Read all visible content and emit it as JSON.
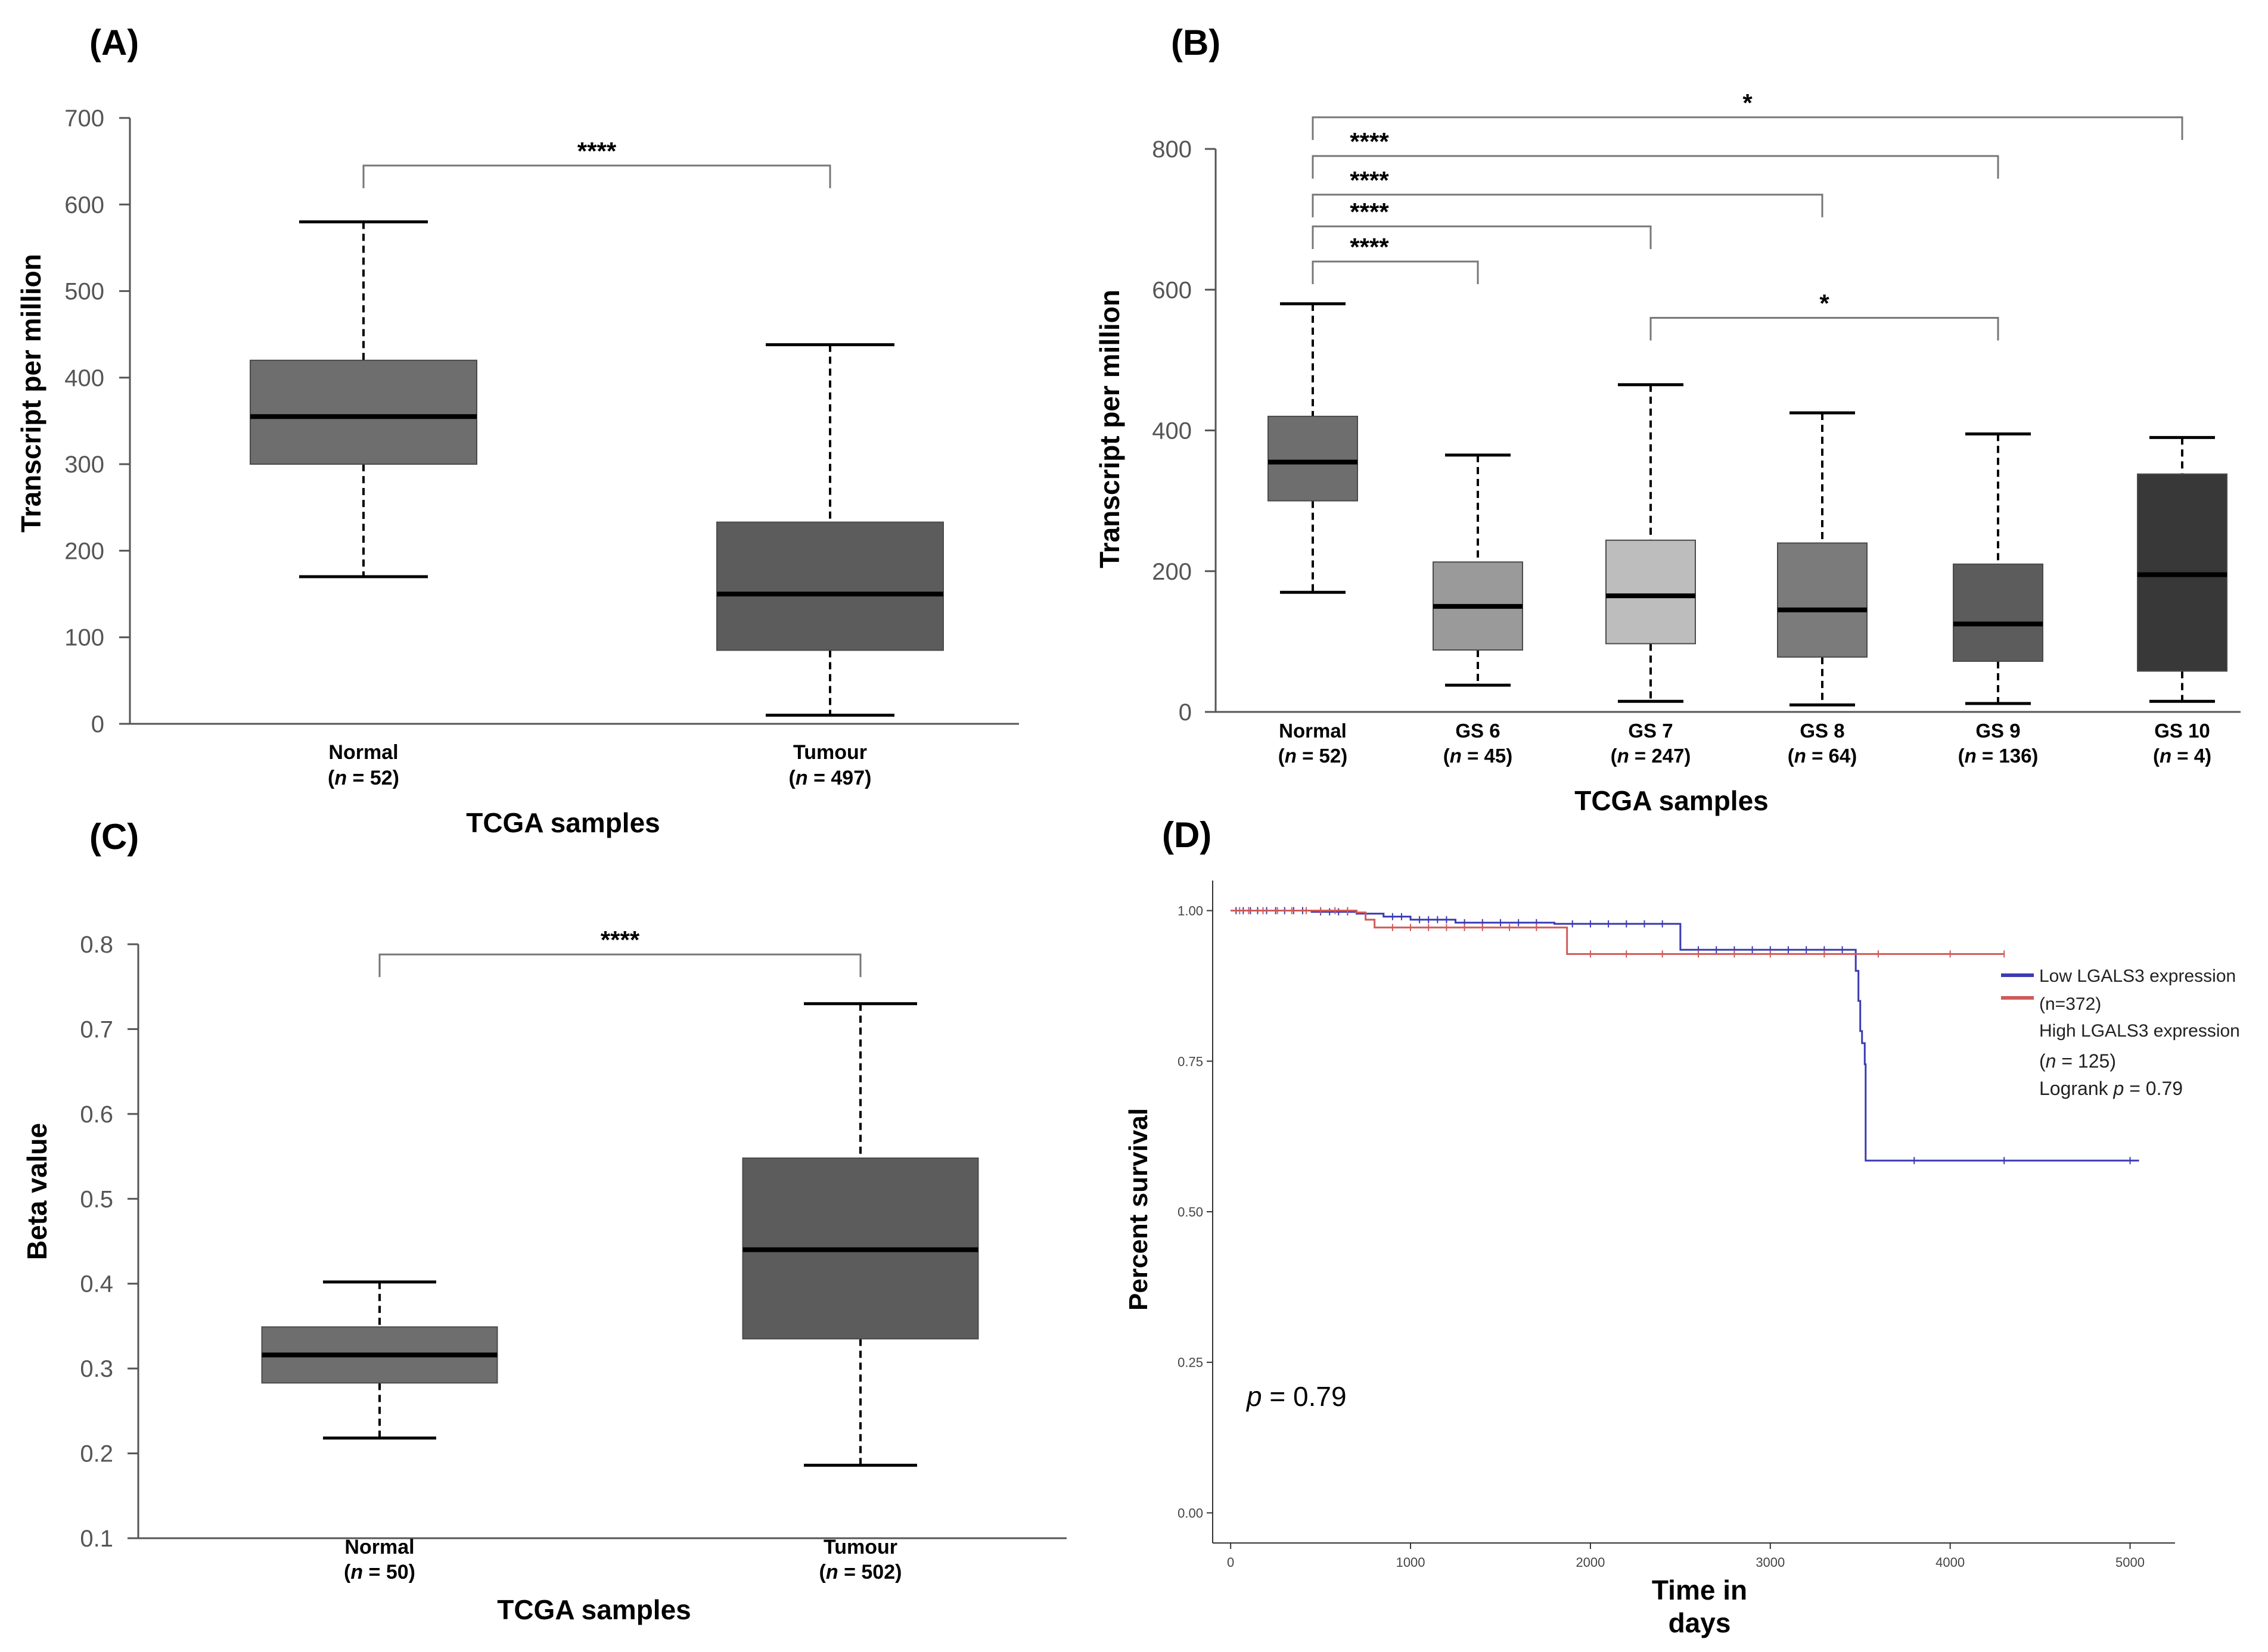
{
  "figure": {
    "panel_labels": [
      "(A)",
      "(B)",
      "(C)",
      "(D)"
    ]
  },
  "colors": {
    "box_dark": "#5c5c5c",
    "box_mid": "#6e6e6e",
    "box_light": "#9a9a9a",
    "box_lighter": "#bdbdbd",
    "box_medium": "#7b7b7b",
    "box_darkest": "#383838",
    "axis": "#555555",
    "bracket": "#777777",
    "low_curve": "#3b3bb3",
    "high_curve": "#d05a5a"
  },
  "chart_data": [
    {
      "panel": "(A)",
      "type": "box",
      "xlabel": "TCGA samples",
      "ylabel": "Transcript per million",
      "ylim": [
        0,
        700
      ],
      "yticks": [
        "0",
        "100",
        "200",
        "300",
        "400",
        "500",
        "600",
        "700"
      ],
      "categories": [
        {
          "name": "Normal",
          "n_label": "(n = 52)",
          "n_prefix": "(",
          "n_italic": "n",
          "n_suffix": " = 52)",
          "min": 170,
          "q1": 300,
          "median": 355,
          "q3": 420,
          "max": 580,
          "color": "#6e6e6e"
        },
        {
          "name": "Tumour",
          "n_label": "(n = 497)",
          "n_prefix": "(",
          "n_italic": "n",
          "n_suffix": " = 497)",
          "min": 10,
          "q1": 85,
          "median": 150,
          "q3": 233,
          "max": 438,
          "color": "#5c5c5c"
        }
      ],
      "significance": [
        {
          "from": 0,
          "to": 1,
          "y": 645,
          "label": "****"
        }
      ]
    },
    {
      "panel": "(B)",
      "type": "box",
      "xlabel": "TCGA samples",
      "ylabel": "Transcript per million",
      "ylim": [
        0,
        800
      ],
      "yticks": [
        "0",
        "200",
        "400",
        "600",
        "800"
      ],
      "categories": [
        {
          "name": "Normal",
          "n_label": "(n = 52)",
          "n_prefix": "(",
          "n_italic": "n",
          "n_suffix": " = 52)",
          "min": 170,
          "q1": 300,
          "median": 355,
          "q3": 420,
          "max": 580,
          "color": "#6e6e6e"
        },
        {
          "name": "GS 6",
          "n_label": "(n = 45)",
          "n_prefix": "(",
          "n_italic": "n",
          "n_suffix": " = 45)",
          "min": 38,
          "q1": 88,
          "median": 150,
          "q3": 213,
          "max": 365,
          "color": "#9a9a9a"
        },
        {
          "name": "GS  7",
          "n_label": "(n = 247)",
          "n_prefix": "(",
          "n_italic": "n",
          "n_suffix": " = 247)",
          "min": 15,
          "q1": 97,
          "median": 165,
          "q3": 244,
          "max": 465,
          "color": "#bdbdbd"
        },
        {
          "name": "GS 8",
          "n_label": "(n = 64)",
          "n_prefix": "(",
          "n_italic": "n",
          "n_suffix": " = 64)",
          "min": 10,
          "q1": 78,
          "median": 145,
          "q3": 240,
          "max": 425,
          "color": "#7b7b7b"
        },
        {
          "name": "GS 9",
          "n_label": "(n = 136)",
          "n_prefix": "(",
          "n_italic": "n",
          "n_suffix": " = 136)",
          "min": 12,
          "q1": 72,
          "median": 125,
          "q3": 210,
          "max": 395,
          "color": "#5c5c5c"
        },
        {
          "name": "GS 10",
          "n_label": "(n = 4)",
          "n_prefix": "(",
          "n_italic": "n",
          "n_suffix": " = 4)",
          "min": 15,
          "q1": 58,
          "median": 195,
          "q3": 338,
          "max": 390,
          "color": "#383838"
        }
      ],
      "significance": [
        {
          "from": 0,
          "to": 5,
          "y": 845,
          "label": "*"
        },
        {
          "from": 0,
          "to": 4,
          "y": 790,
          "label": "****"
        },
        {
          "from": 0,
          "to": 3,
          "y": 735,
          "label": "****"
        },
        {
          "from": 0,
          "to": 2,
          "y": 690,
          "label": "****"
        },
        {
          "from": 0,
          "to": 1,
          "y": 640,
          "label": "****"
        },
        {
          "from": 2,
          "to": 4,
          "y": 560,
          "label": "*"
        }
      ]
    },
    {
      "panel": "(C)",
      "type": "box",
      "xlabel": "TCGA samples",
      "ylabel": "Beta value",
      "ylim": [
        0.1,
        0.8
      ],
      "yticks": [
        "0.1",
        "0.2",
        "0.3",
        "0.4",
        "0.5",
        "0.6",
        "0.7",
        "0.8"
      ],
      "categories": [
        {
          "name": "Normal",
          "n_label": "(n = 50)",
          "n_prefix": "(",
          "n_italic": "n",
          "n_suffix": " = 50)",
          "min": 0.218,
          "q1": 0.283,
          "median": 0.316,
          "q3": 0.349,
          "max": 0.402,
          "color": "#6e6e6e"
        },
        {
          "name": "Tumour",
          "n_label": "(n = 502)",
          "n_prefix": "(",
          "n_italic": "n",
          "n_suffix": " = 502)",
          "min": 0.186,
          "q1": 0.335,
          "median": 0.44,
          "q3": 0.548,
          "max": 0.73,
          "color": "#5c5c5c"
        }
      ],
      "significance": [
        {
          "from": 0,
          "to": 1,
          "y": 0.788,
          "label": "****"
        }
      ]
    },
    {
      "panel": "(D)",
      "type": "line",
      "xlabel_line1": "Time in",
      "xlabel_line2": "days",
      "ylabel": "Percent survival",
      "xlim": [
        -100,
        5250
      ],
      "ylim": [
        -0.05,
        1.05
      ],
      "xticks": [
        "0",
        "1000",
        "2000",
        "3000",
        "4000",
        "5000"
      ],
      "yticks": [
        "0.00",
        "0.25",
        "0.50",
        "0.75",
        "1.00"
      ],
      "pvalue_prefix": "p",
      "pvalue_suffix": " = 0.79",
      "legend": {
        "position": "top-right",
        "low_label": "Low LGALS3 expression",
        "low_n": "(n=372)",
        "high_label": "High LGALS3 expression",
        "high_n_prefix": "(",
        "high_n_italic": "n",
        "high_n_suffix": " = 125)",
        "logrank_prefix": "Logrank ",
        "logrank_italic": "p",
        "logrank_suffix": " = 0.79"
      },
      "series": [
        {
          "name": "Low LGALS3 expression",
          "color": "#3b3bb3",
          "steps": [
            [
              0,
              1.0
            ],
            [
              450,
              0.998
            ],
            [
              700,
              0.995
            ],
            [
              850,
              0.99
            ],
            [
              1000,
              0.985
            ],
            [
              1250,
              0.98
            ],
            [
              1800,
              0.978
            ],
            [
              2500,
              0.935
            ],
            [
              3450,
              0.935
            ],
            [
              3475,
              0.9
            ],
            [
              3490,
              0.85
            ],
            [
              3500,
              0.8
            ],
            [
              3510,
              0.78
            ],
            [
              3525,
              0.745
            ],
            [
              3530,
              0.585
            ],
            [
              5050,
              0.585
            ]
          ],
          "censor": [
            30,
            70,
            110,
            150,
            200,
            250,
            300,
            350,
            400,
            500,
            550,
            600,
            650,
            900,
            950,
            1050,
            1100,
            1150,
            1200,
            1300,
            1400,
            1500,
            1600,
            1700,
            1900,
            2000,
            2100,
            2200,
            2300,
            2400,
            2600,
            2700,
            2800,
            2900,
            3000,
            3100,
            3200,
            3300,
            3400,
            3800,
            4300,
            5000
          ]
        },
        {
          "name": "High LGALS3 expression",
          "color": "#d05a5a",
          "steps": [
            [
              0,
              1.0
            ],
            [
              700,
              0.997
            ],
            [
              750,
              0.985
            ],
            [
              800,
              0.972
            ],
            [
              1850,
              0.972
            ],
            [
              1870,
              0.928
            ],
            [
              4300,
              0.928
            ]
          ],
          "censor": [
            50,
            100,
            180,
            260,
            340,
            420,
            500,
            580,
            650,
            900,
            1000,
            1100,
            1200,
            1300,
            1400,
            1550,
            1700,
            2000,
            2200,
            2400,
            2600,
            2800,
            3000,
            3300,
            3600,
            4000,
            4300
          ]
        }
      ]
    }
  ]
}
